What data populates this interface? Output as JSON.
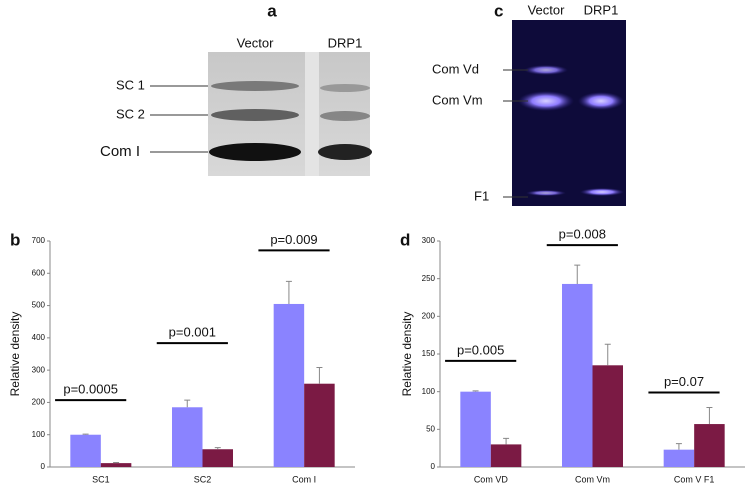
{
  "panel_labels": [
    "a",
    "b",
    "c",
    "d"
  ],
  "gel_a": {
    "lanes": [
      "Vector",
      "DRP1"
    ],
    "bands": [
      "SC 1",
      "SC 2",
      "Com I"
    ]
  },
  "gel_c": {
    "lanes": [
      "Vector",
      "DRP1"
    ],
    "bands": [
      "Com Vd",
      "Com Vm",
      "F1"
    ]
  },
  "chart_data": [
    {
      "type": "bar",
      "ylabel": "Relative density",
      "categories": [
        "SC1",
        "SC2",
        "Com I"
      ],
      "series": [
        {
          "color": "#8a83ff",
          "values": [
            100,
            185,
            505
          ],
          "errors": [
            2,
            22,
            70
          ]
        },
        {
          "color": "#7b1a44",
          "values": [
            12,
            55,
            258
          ],
          "errors": [
            2,
            5,
            50
          ]
        }
      ],
      "annotations": [
        "p=0.0005",
        "p=0.001",
        "p=0.009"
      ],
      "ylim": [
        0,
        700
      ],
      "yticks": [
        0,
        100,
        200,
        300,
        400,
        500,
        600,
        700
      ]
    },
    {
      "type": "bar",
      "ylabel": "Relative density",
      "categories": [
        "Com VD",
        "Com Vm",
        "Com V F1"
      ],
      "series": [
        {
          "color": "#8a83ff",
          "values": [
            100,
            243,
            23
          ],
          "errors": [
            1,
            25,
            8
          ]
        },
        {
          "color": "#7b1a44",
          "values": [
            30,
            135,
            57
          ],
          "errors": [
            8,
            28,
            22
          ]
        }
      ],
      "annotations": [
        "p=0.005",
        "p=0.008",
        "p=0.07"
      ],
      "ylim": [
        0,
        300
      ],
      "yticks": [
        0,
        50,
        100,
        150,
        200,
        250,
        300
      ]
    }
  ]
}
